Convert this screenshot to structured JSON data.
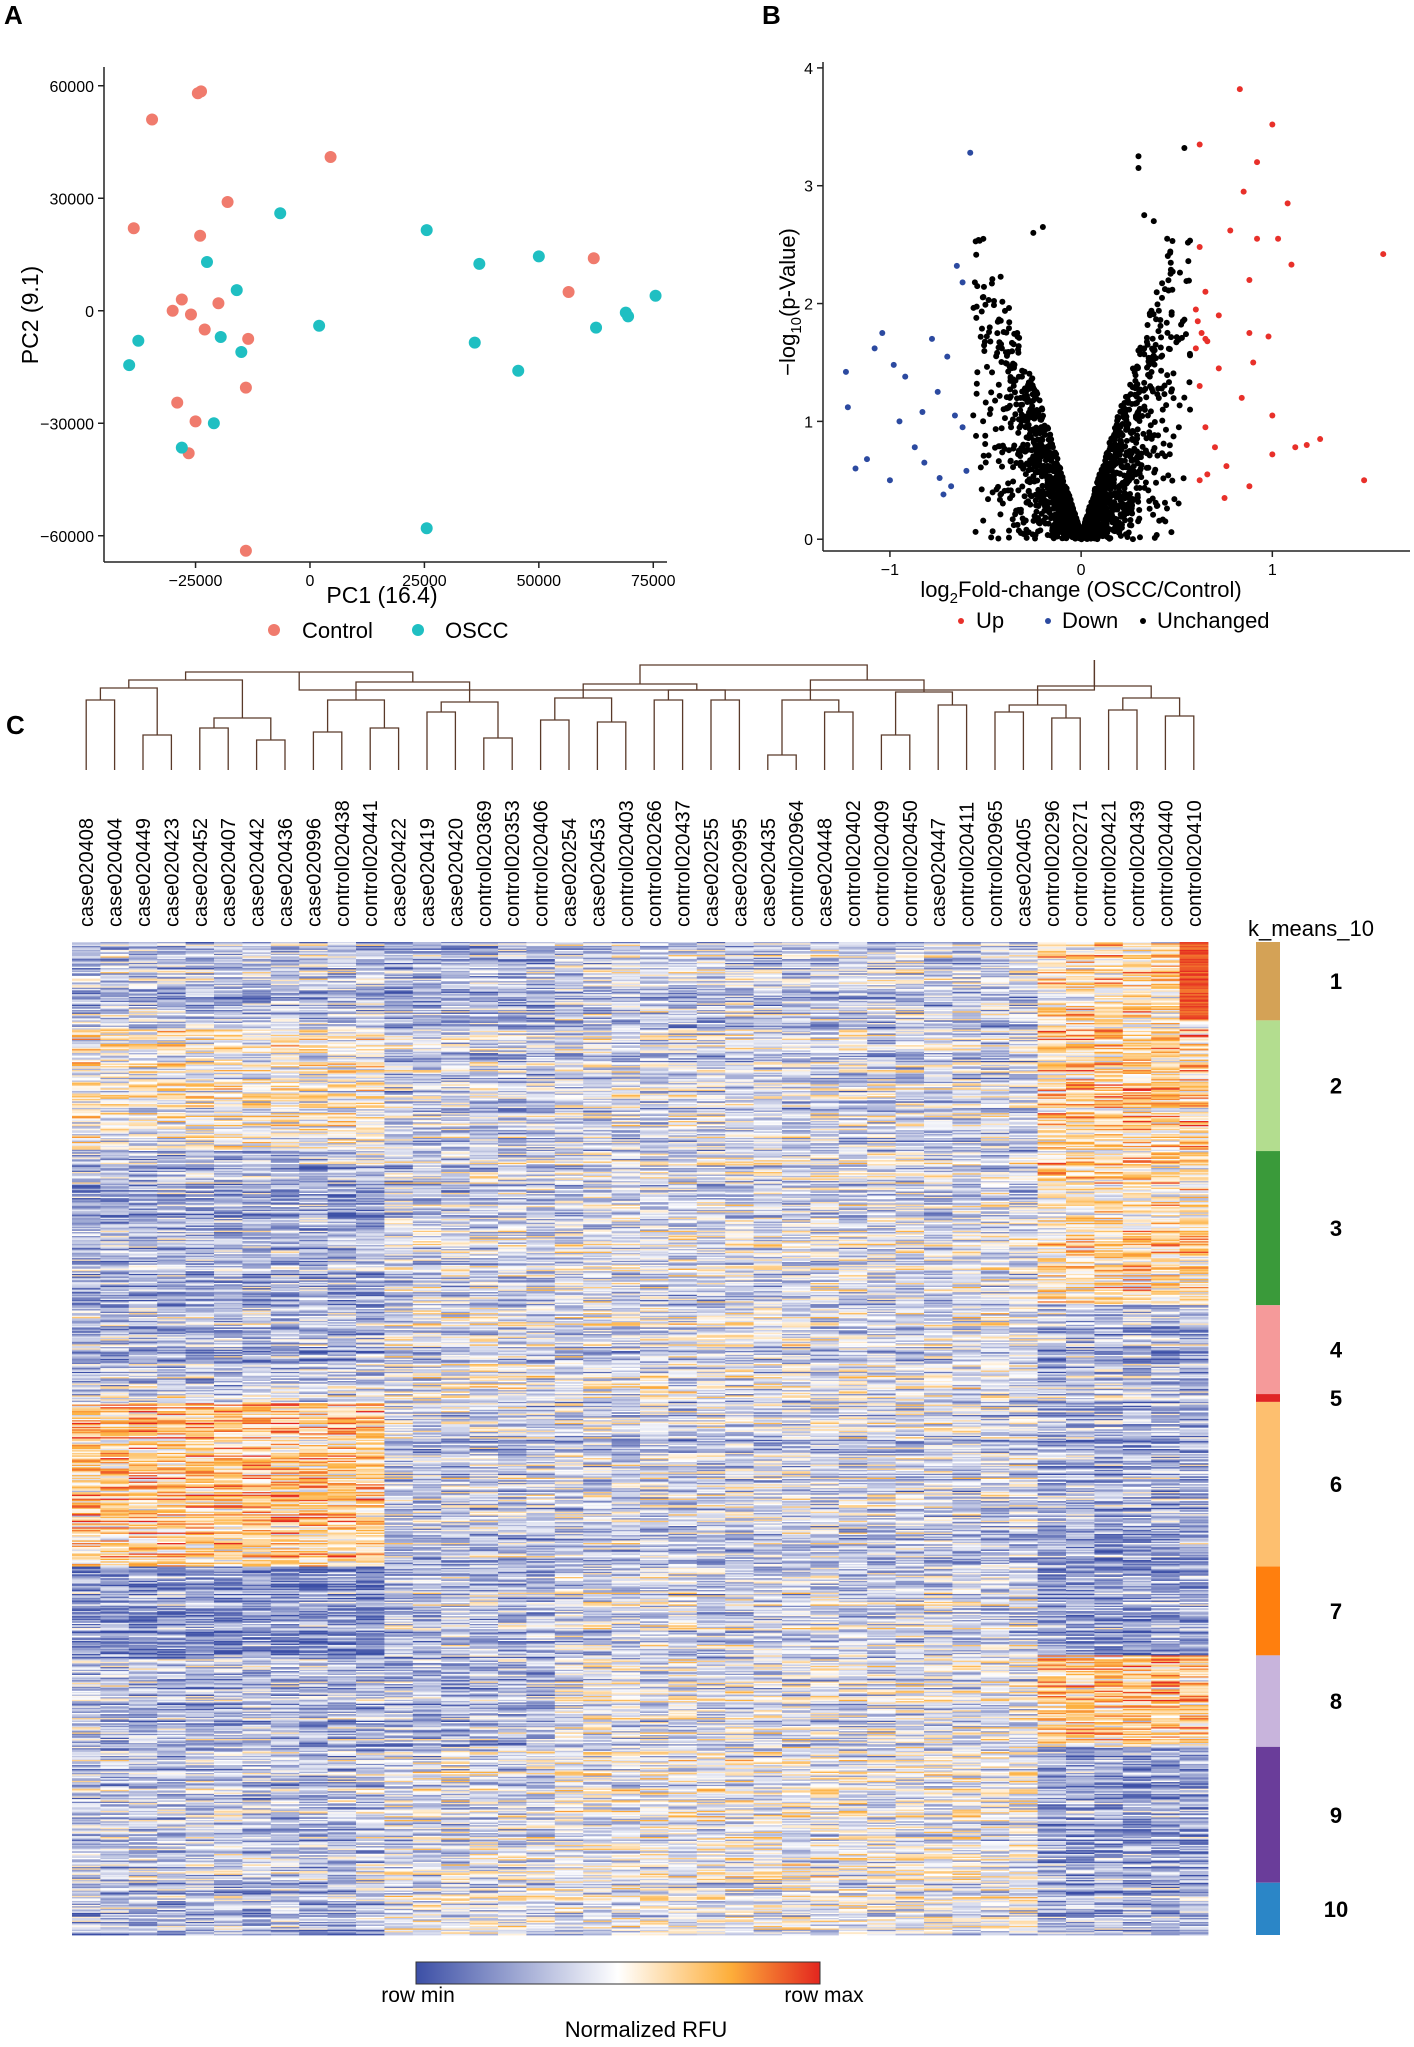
{
  "panels": {
    "A": {
      "letter": "A",
      "chart_data": {
        "type": "scatter",
        "title": "",
        "xlabel": "PC1 (16.4)",
        "ylabel": "PC2 (9.1)",
        "xlim": [
          -45000,
          78000
        ],
        "ylim": [
          -67000,
          65000
        ],
        "xticks": [
          -25000,
          0,
          25000,
          50000,
          75000
        ],
        "xtick_labels": [
          "−25000",
          "0",
          "25000",
          "50000",
          "75000"
        ],
        "yticks": [
          -60000,
          -30000,
          0,
          30000,
          60000
        ],
        "ytick_labels": [
          "−60000",
          "−30000",
          "0",
          "30000",
          "60000"
        ],
        "legend_position": "bottom",
        "series": [
          {
            "name": "Control",
            "color": "#f07b6d",
            "points": [
              [
                -34500,
                51000
              ],
              [
                -24500,
                58000
              ],
              [
                -23800,
                58500
              ],
              [
                -38500,
                22000
              ],
              [
                -18000,
                29000
              ],
              [
                -24000,
                20000
              ],
              [
                -20000,
                2000
              ],
              [
                -30000,
                0
              ],
              [
                -28000,
                3000
              ],
              [
                -26000,
                -1000
              ],
              [
                -23000,
                -5000
              ],
              [
                -13500,
                -7500
              ],
              [
                -14000,
                -20500
              ],
              [
                -29000,
                -24500
              ],
              [
                -25000,
                -29500
              ],
              [
                -26500,
                -38000
              ],
              [
                -14000,
                -64000
              ],
              [
                4500,
                41000
              ],
              [
                56500,
                5000
              ],
              [
                62000,
                14000
              ]
            ]
          },
          {
            "name": "OSCC",
            "color": "#1fbfc2",
            "points": [
              [
                -6500,
                26000
              ],
              [
                -22500,
                13000
              ],
              [
                -16000,
                5500
              ],
              [
                -19500,
                -7000
              ],
              [
                -15000,
                -11000
              ],
              [
                -37500,
                -8000
              ],
              [
                -39500,
                -14500
              ],
              [
                -21000,
                -30000
              ],
              [
                -28000,
                -36500
              ],
              [
                2000,
                -4000
              ],
              [
                25500,
                21500
              ],
              [
                37000,
                12500
              ],
              [
                36000,
                -8500
              ],
              [
                50000,
                14500
              ],
              [
                45500,
                -16000
              ],
              [
                62500,
                -4500
              ],
              [
                69000,
                -500
              ],
              [
                69500,
                -1500
              ],
              [
                75500,
                4000
              ],
              [
                25500,
                -58000
              ]
            ]
          }
        ]
      }
    },
    "B": {
      "letter": "B",
      "chart_data": {
        "type": "scatter",
        "title": "",
        "xlabel_parts": [
          "log",
          "2",
          "Fold-change (OSCC/Control)"
        ],
        "ylabel_parts": [
          "−log",
          "10",
          "(p-Value)"
        ],
        "xlim": [
          -1.35,
          1.72
        ],
        "ylim": [
          -0.1,
          4.05
        ],
        "xticks": [
          -1,
          0,
          1
        ],
        "xtick_labels": [
          "−1",
          "0",
          "1"
        ],
        "yticks": [
          0,
          1,
          2,
          3,
          4
        ],
        "ytick_labels": [
          "0",
          "1",
          "2",
          "3",
          "4"
        ],
        "legend_position": "bottom",
        "series": [
          {
            "name": "Up",
            "color": "#e8302a",
            "points": [
              [
                0.83,
                3.82
              ],
              [
                1.0,
                3.52
              ],
              [
                0.62,
                3.35
              ],
              [
                0.92,
                3.2
              ],
              [
                0.85,
                2.95
              ],
              [
                1.08,
                2.85
              ],
              [
                0.78,
                2.62
              ],
              [
                0.92,
                2.55
              ],
              [
                1.03,
                2.55
              ],
              [
                0.62,
                2.48
              ],
              [
                1.1,
                2.33
              ],
              [
                0.88,
                2.2
              ],
              [
                0.65,
                2.1
              ],
              [
                0.6,
                1.95
              ],
              [
                0.72,
                1.9
              ],
              [
                0.88,
                1.75
              ],
              [
                0.98,
                1.72
              ],
              [
                0.65,
                1.7
              ],
              [
                0.6,
                1.62
              ],
              [
                0.9,
                1.5
              ],
              [
                0.72,
                1.45
              ],
              [
                0.62,
                1.3
              ],
              [
                0.84,
                1.2
              ],
              [
                1.0,
                1.05
              ],
              [
                0.65,
                0.95
              ],
              [
                0.7,
                0.78
              ],
              [
                1.12,
                0.78
              ],
              [
                0.76,
                0.62
              ],
              [
                0.66,
                0.55
              ],
              [
                0.88,
                0.45
              ],
              [
                1.0,
                0.72
              ],
              [
                1.18,
                0.8
              ],
              [
                1.25,
                0.85
              ],
              [
                1.48,
                0.5
              ],
              [
                1.58,
                2.42
              ],
              [
                0.62,
                0.5
              ],
              [
                0.75,
                0.35
              ],
              [
                0.63,
                1.75
              ],
              [
                0.66,
                1.68
              ],
              [
                0.61,
                1.85
              ]
            ]
          },
          {
            "name": "Down",
            "color": "#2c4aa0",
            "points": [
              [
                -0.58,
                3.28
              ],
              [
                -0.65,
                2.32
              ],
              [
                -0.62,
                2.18
              ],
              [
                -1.23,
                1.42
              ],
              [
                -1.22,
                1.12
              ],
              [
                -1.18,
                0.6
              ],
              [
                -1.04,
                1.75
              ],
              [
                -1.08,
                1.62
              ],
              [
                -0.98,
                1.48
              ],
              [
                -0.92,
                1.38
              ],
              [
                -0.78,
                1.7
              ],
              [
                -0.7,
                1.55
              ],
              [
                -0.75,
                1.25
              ],
              [
                -0.83,
                1.08
              ],
              [
                -0.95,
                1.0
              ],
              [
                -1.12,
                0.68
              ],
              [
                -0.87,
                0.78
              ],
              [
                -0.82,
                0.65
              ],
              [
                -0.74,
                0.52
              ],
              [
                -0.6,
                0.58
              ],
              [
                -0.68,
                0.45
              ],
              [
                -0.72,
                0.38
              ],
              [
                -1.0,
                0.5
              ],
              [
                -0.66,
                1.05
              ],
              [
                -0.62,
                0.95
              ]
            ]
          }
        ],
        "unchanged": {
          "name": "Unchanged",
          "color": "#000000"
        }
      }
    },
    "C": {
      "letter": "C",
      "chart_data": {
        "type": "heatmap",
        "title": "",
        "samples": [
          "case020408",
          "case020404",
          "case020449",
          "case020423",
          "case020452",
          "case020407",
          "case020442",
          "case020436",
          "case020996",
          "control020438",
          "control020441",
          "case020422",
          "case020419",
          "case020420",
          "control020369",
          "control020353",
          "control020406",
          "case020254",
          "case020453",
          "control020403",
          "control020266",
          "control020437",
          "case020255",
          "case020995",
          "case020435",
          "control020964",
          "case020448",
          "control020402",
          "control020409",
          "control020450",
          "case020447",
          "control020411",
          "control020965",
          "case020405",
          "control020296",
          "control020271",
          "control020421",
          "control020439",
          "control020440",
          "control020410"
        ],
        "cluster_title": "k_means_10",
        "clusters": [
          {
            "label": "1",
            "size": 60,
            "color": "#d4a256"
          },
          {
            "label": "2",
            "size": 100,
            "color": "#b3dd8f"
          },
          {
            "label": "3",
            "size": 118,
            "color": "#3a9a3a"
          },
          {
            "label": "4",
            "size": 68,
            "color": "#f59a9a"
          },
          {
            "label": "5",
            "size": 6,
            "color": "#e02525"
          },
          {
            "label": "6",
            "size": 126,
            "color": "#fdbf6f"
          },
          {
            "label": "7",
            "size": 68,
            "color": "#ff7f0e"
          },
          {
            "label": "8",
            "size": 70,
            "color": "#c8b4dc"
          },
          {
            "label": "9",
            "size": 104,
            "color": "#6a3d9a"
          },
          {
            "label": "10",
            "size": 40,
            "color": "#2b86c7"
          }
        ],
        "colorbar": {
          "title": "Normalized RFU",
          "min_label": "row min",
          "max_label": "row max",
          "colors": [
            "#3c4fa6",
            "#ffffff",
            "#fdae3a",
            "#e3261f"
          ]
        }
      }
    }
  }
}
